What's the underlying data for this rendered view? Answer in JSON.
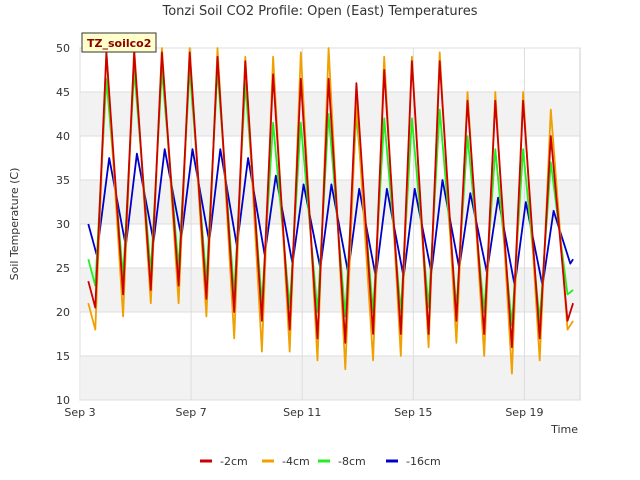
{
  "chart_data": {
    "type": "line",
    "title": "Tonzi Soil CO2 Profile: Open (East) Temperatures",
    "xlabel": "Time",
    "ylabel": "Soil Temperature (C)",
    "annotation": "TZ_soilco2",
    "x_range_days": [
      3,
      21
    ],
    "x_ticks": [
      {
        "label": "Sep 3",
        "day": 3
      },
      {
        "label": "Sep 7",
        "day": 7
      },
      {
        "label": "Sep 11",
        "day": 11
      },
      {
        "label": "Sep 15",
        "day": 15
      },
      {
        "label": "Sep 19",
        "day": 19
      }
    ],
    "ylim": [
      10,
      50
    ],
    "y_ticks": [
      10,
      15,
      20,
      25,
      30,
      35,
      40,
      45,
      50
    ],
    "legend_position": "bottom-center",
    "series": [
      {
        "name": "-2cm",
        "color": "#cc0000",
        "x": [
          3.3,
          3.55,
          3.95,
          4.55,
          4.95,
          5.55,
          5.95,
          6.55,
          6.95,
          7.55,
          7.95,
          8.55,
          8.95,
          9.55,
          9.95,
          10.55,
          10.95,
          11.55,
          11.95,
          12.55,
          12.95,
          13.55,
          13.95,
          14.55,
          14.95,
          15.55,
          15.95,
          16.55,
          16.95,
          17.55,
          17.95,
          18.55,
          18.95,
          19.55,
          19.95,
          20.55,
          20.75
        ],
        "values": [
          23.5,
          20.5,
          49.5,
          22,
          49.5,
          22.5,
          49.5,
          23,
          49.5,
          21.5,
          49,
          20,
          48.5,
          19,
          47,
          18,
          46.5,
          17,
          46.5,
          16.5,
          46,
          17.5,
          47.5,
          17.5,
          48.5,
          17.5,
          48.5,
          19,
          44,
          17.5,
          44,
          16,
          44,
          17,
          40,
          19,
          21
        ]
      },
      {
        "name": "-4cm",
        "color": "#f0a000",
        "x": [
          3.3,
          3.55,
          3.95,
          4.55,
          4.95,
          5.55,
          5.95,
          6.55,
          6.95,
          7.55,
          7.95,
          8.55,
          8.95,
          9.55,
          9.95,
          10.55,
          10.95,
          11.55,
          11.95,
          12.55,
          12.95,
          13.55,
          13.95,
          14.55,
          14.95,
          15.55,
          15.95,
          16.55,
          16.95,
          17.55,
          17.95,
          18.55,
          18.95,
          19.55,
          19.95,
          20.55,
          20.75
        ],
        "values": [
          21,
          18,
          49.5,
          19.5,
          50,
          21,
          50,
          21,
          50,
          19.5,
          50,
          17,
          49,
          15.5,
          49,
          15.5,
          49.5,
          14.5,
          50,
          13.5,
          44,
          14.5,
          49,
          15,
          49,
          16,
          49.5,
          16.5,
          45,
          15,
          45,
          13,
          45,
          14.5,
          43,
          18,
          19
        ]
      },
      {
        "name": "-8cm",
        "color": "#22ee22",
        "x": [
          3.3,
          3.55,
          3.95,
          4.55,
          4.95,
          5.55,
          5.95,
          6.55,
          6.95,
          7.55,
          7.95,
          8.55,
          8.95,
          9.55,
          9.95,
          10.55,
          10.95,
          11.55,
          11.95,
          12.55,
          12.95,
          13.55,
          13.95,
          14.55,
          14.95,
          15.55,
          15.95,
          16.55,
          16.95,
          17.55,
          17.95,
          18.55,
          18.95,
          19.55,
          19.95,
          20.55,
          20.75
        ],
        "values": [
          26,
          23,
          46.5,
          24,
          47.5,
          24.5,
          47.5,
          25,
          47.5,
          23.5,
          47.5,
          22,
          46,
          21,
          41.5,
          20.5,
          41.5,
          20,
          42.5,
          19.5,
          42.5,
          20,
          42,
          20,
          42,
          20.5,
          43,
          20.5,
          40,
          20,
          38.5,
          18.5,
          38.5,
          19,
          37,
          22,
          22.5
        ]
      },
      {
        "name": "-16cm",
        "color": "#0000cc",
        "x": [
          3.3,
          3.6,
          4.05,
          4.65,
          5.05,
          5.65,
          6.05,
          6.65,
          7.05,
          7.65,
          8.05,
          8.65,
          9.05,
          9.65,
          10.05,
          10.65,
          11.05,
          11.65,
          12.05,
          12.65,
          13.05,
          13.65,
          14.05,
          14.65,
          15.05,
          15.65,
          16.05,
          16.65,
          17.05,
          17.65,
          18.05,
          18.65,
          19.05,
          19.65,
          20.05,
          20.65,
          20.75
        ],
        "values": [
          30,
          26.5,
          37.5,
          27.5,
          38,
          28,
          38.5,
          28.5,
          38.5,
          28,
          38.5,
          27.5,
          37.5,
          26.5,
          35.5,
          25.5,
          34.5,
          25,
          34.5,
          24.5,
          34,
          24,
          34,
          24,
          34,
          24.5,
          35,
          25,
          33.5,
          24.5,
          33,
          23,
          32.5,
          23,
          31.5,
          25.5,
          26
        ]
      }
    ]
  }
}
